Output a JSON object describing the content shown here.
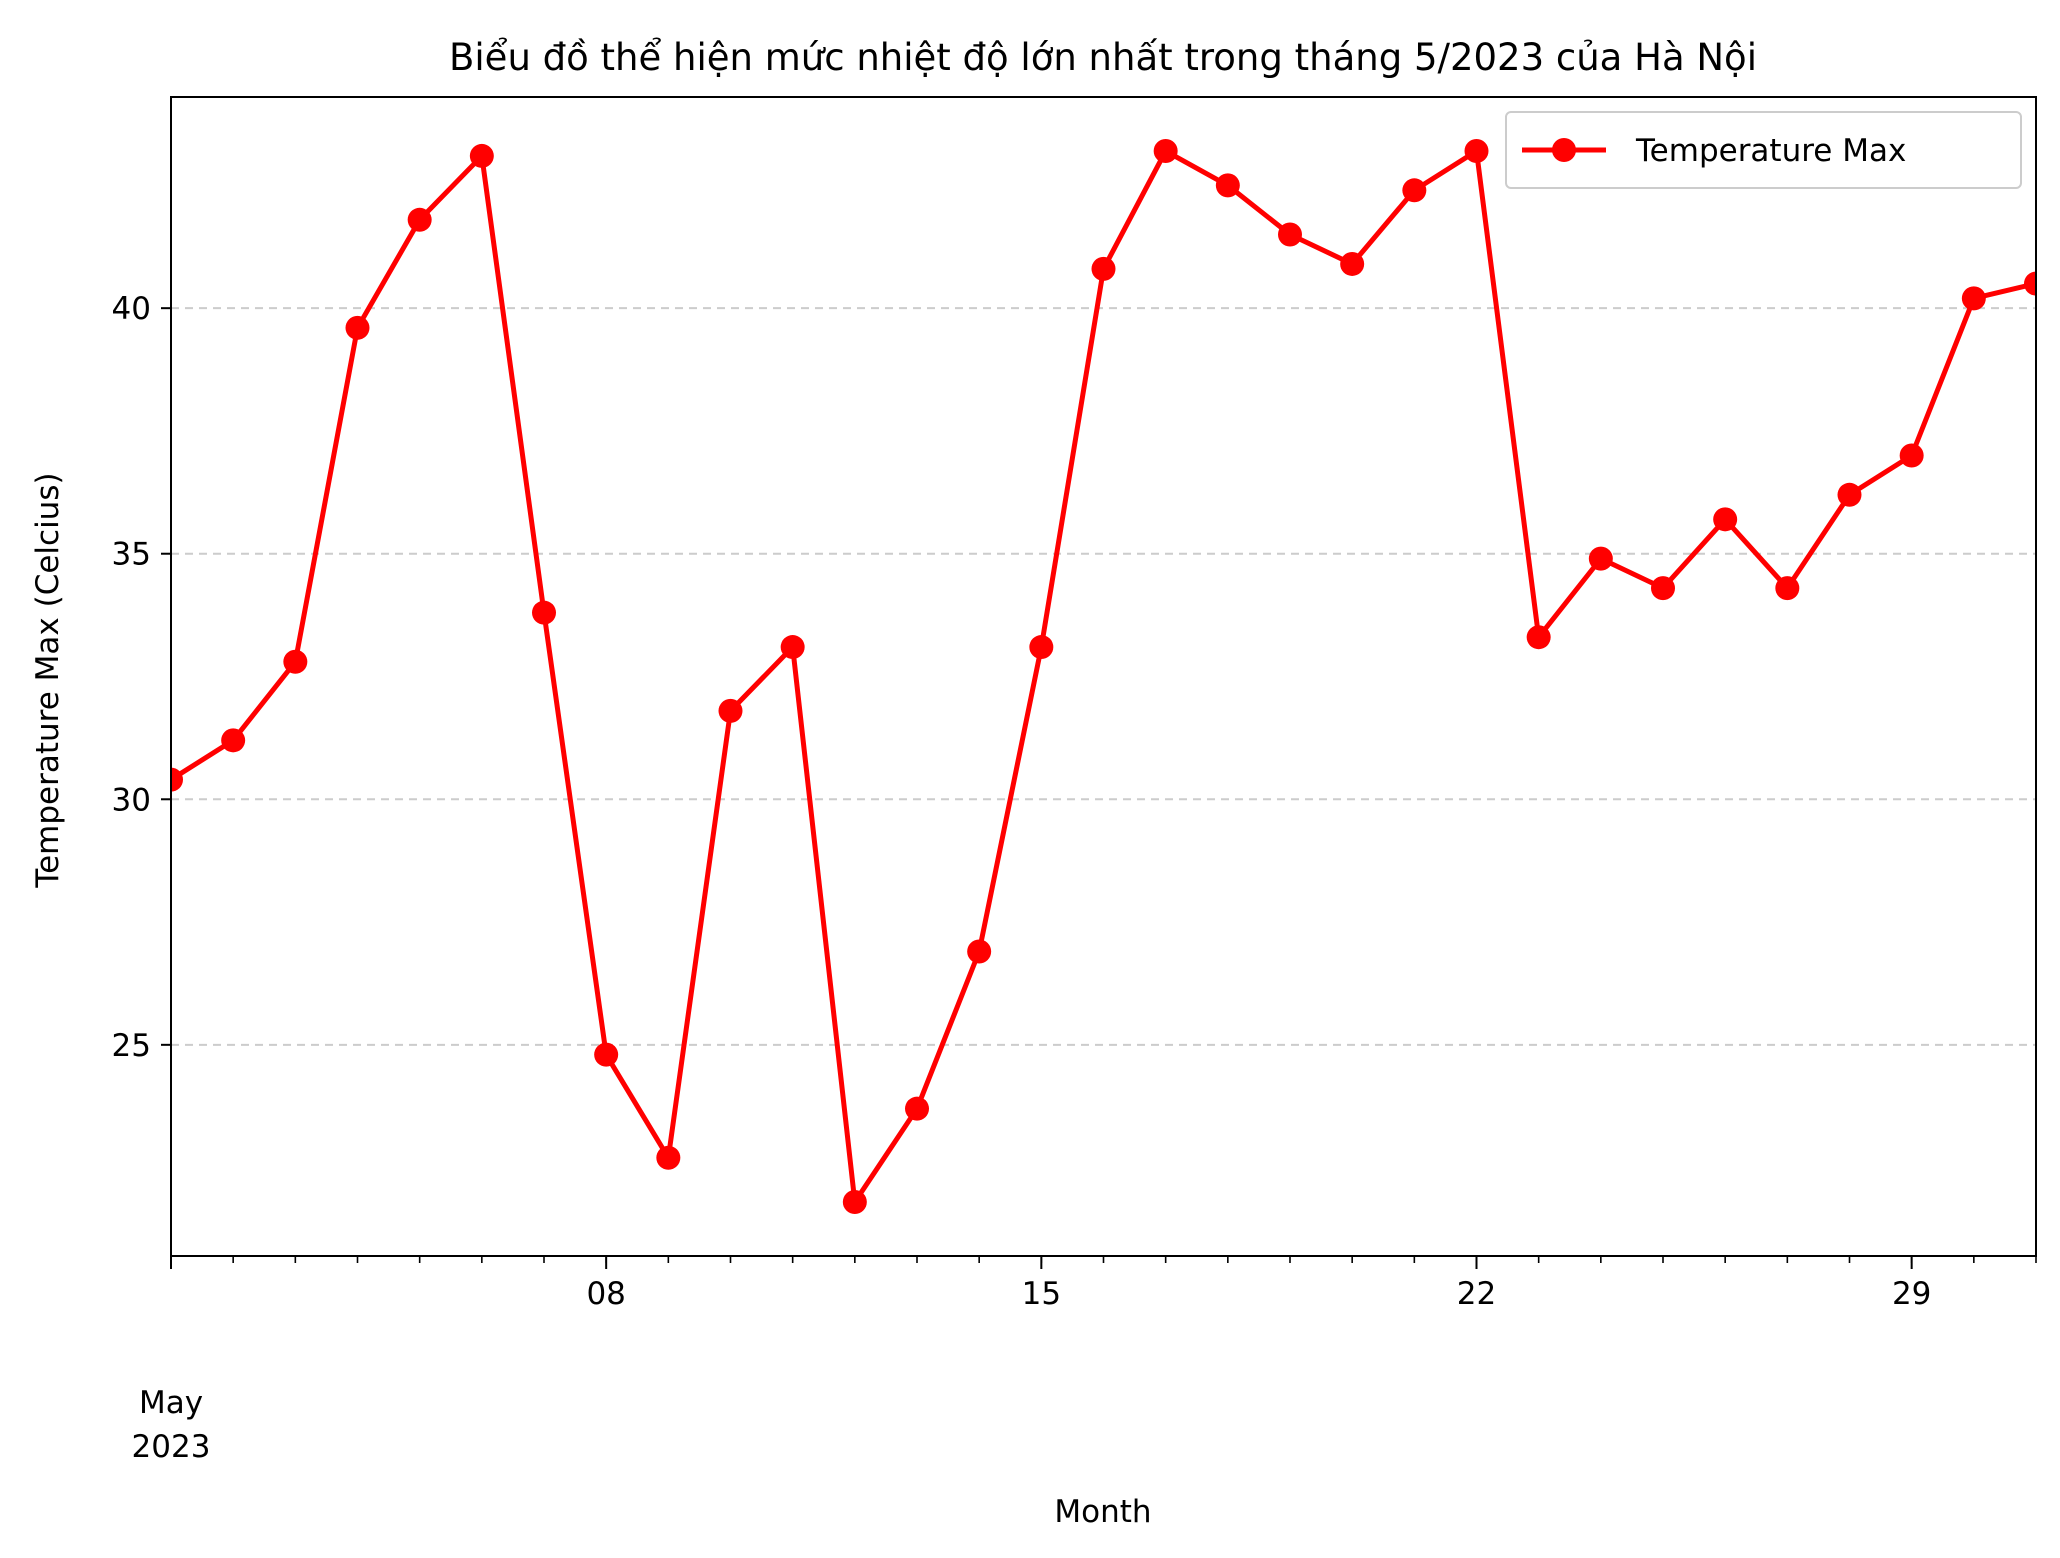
{
  "chart_data": {
    "type": "line",
    "title": "Biểu đồ thể hiện mức nhiệt độ lớn nhất trong tháng 5/2023 của Hà Nội",
    "xlabel": "Month",
    "ylabel": "Temperature Max (Celcius)",
    "x_month_label": "May",
    "x_year_label": "2023",
    "x": [
      "2023-05-01",
      "2023-05-02",
      "2023-05-03",
      "2023-05-04",
      "2023-05-05",
      "2023-05-06",
      "2023-05-07",
      "2023-05-08",
      "2023-05-09",
      "2023-05-10",
      "2023-05-11",
      "2023-05-12",
      "2023-05-13",
      "2023-05-14",
      "2023-05-15",
      "2023-05-16",
      "2023-05-17",
      "2023-05-18",
      "2023-05-19",
      "2023-05-20",
      "2023-05-21",
      "2023-05-22",
      "2023-05-23",
      "2023-05-24",
      "2023-05-25",
      "2023-05-26",
      "2023-05-27",
      "2023-05-28",
      "2023-05-29",
      "2023-05-30",
      "2023-05-31"
    ],
    "series": [
      {
        "name": "Temperature Max",
        "color": "#ff0000",
        "marker": "circle",
        "values": [
          30.4,
          31.2,
          32.8,
          39.6,
          41.8,
          43.1,
          33.8,
          24.8,
          22.7,
          31.8,
          33.1,
          21.8,
          23.7,
          26.9,
          33.1,
          40.8,
          43.2,
          42.5,
          41.5,
          40.9,
          42.4,
          43.2,
          33.3,
          34.9,
          34.3,
          35.7,
          34.3,
          36.2,
          37.0,
          40.2,
          40.5
        ]
      }
    ],
    "xlim": [
      "2023-05-01",
      "2023-05-31"
    ],
    "ylim": [
      20.7,
      44.3
    ],
    "y_ticks": [
      25,
      30,
      35,
      40
    ],
    "x_major_ticks": [
      {
        "date": "2023-05-08",
        "label": "08"
      },
      {
        "date": "2023-05-15",
        "label": "15"
      },
      {
        "date": "2023-05-22",
        "label": "22"
      },
      {
        "date": "2023-05-29",
        "label": "29"
      }
    ],
    "grid": "horizontal-dashed",
    "legend_position": "top-right"
  }
}
